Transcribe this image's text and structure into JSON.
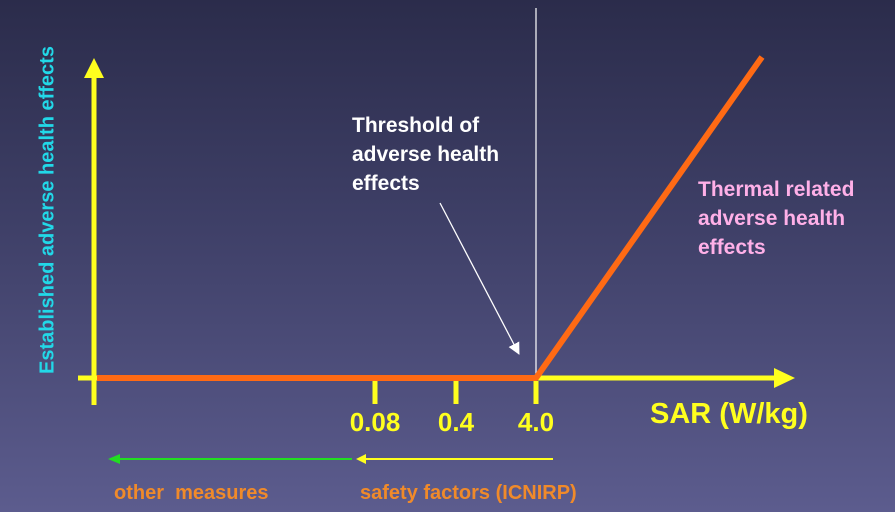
{
  "colors": {
    "axis": "#ffff1e",
    "response_line": "#ff6a14",
    "threshold_line": "#ffffff",
    "y_label": "#22d8e8",
    "thermal_text": "#ffb0e8",
    "bottom_text": "#f08a2a",
    "tick_text": "#ffff1e",
    "other_arrow": "#22dd22",
    "safety_arrow": "#ffff1e"
  },
  "y_axis_label": "Established adverse health effects",
  "x_axis_label": "SAR (W/kg)",
  "ticks": [
    "0.08",
    "0.4",
    "4.0"
  ],
  "threshold_annotation": [
    "Threshold of",
    "adverse health",
    "effects"
  ],
  "thermal_annotation": [
    "Thermal related",
    "adverse health",
    "effects"
  ],
  "bottom": {
    "other_label": "other  measures",
    "safety_label": "safety factors (ICNIRP)"
  }
}
